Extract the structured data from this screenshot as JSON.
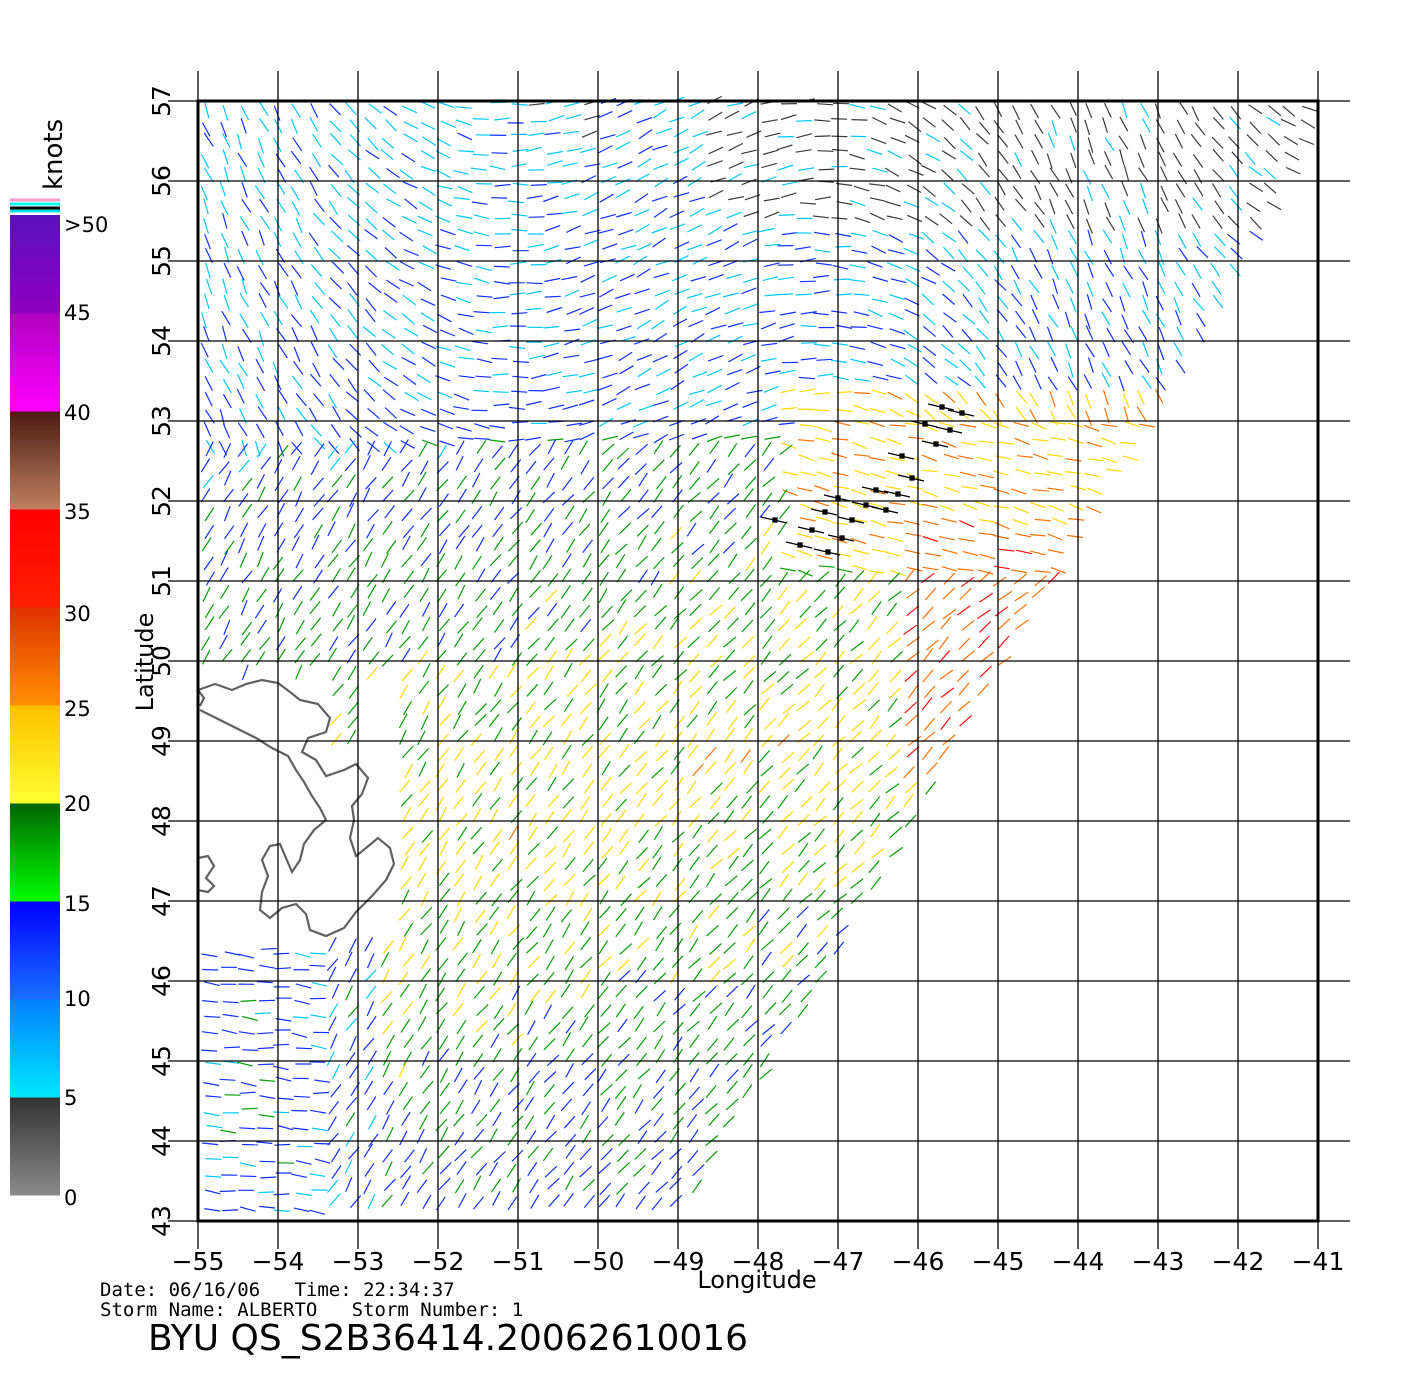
{
  "map": {
    "lon_ticks": [
      "-55",
      "-54",
      "-53",
      "-52",
      "-51",
      "-50",
      "-49",
      "-48",
      "-47",
      "-46",
      "-45",
      "-44",
      "-43",
      "-42",
      "-41"
    ],
    "lat_ticks": [
      "43",
      "44",
      "45",
      "46",
      "47",
      "48",
      "49",
      "50",
      "51",
      "52",
      "53",
      "54",
      "55",
      "56",
      "57"
    ],
    "lon_range": [
      -55,
      -41
    ],
    "lat_range": [
      43,
      57
    ],
    "xlabel": "Longitude",
    "ylabel": "Latitude",
    "land_color": "#606060",
    "storm_track_color": "#000000"
  },
  "legend": {
    "title": "knots",
    "labels": [
      ">50",
      "45",
      "40",
      "35",
      "30",
      "25",
      "20",
      "15",
      "10",
      "5",
      "0"
    ],
    "stops": [
      {
        "from": 0,
        "to": 5,
        "top": "#333333",
        "bottom": "#8a8a8a"
      },
      {
        "from": 5,
        "to": 10,
        "top": "#0080ff",
        "bottom": "#00e8ff"
      },
      {
        "from": 10,
        "to": 15,
        "top": "#0000ff",
        "bottom": "#1a70ff"
      },
      {
        "from": 15,
        "to": 20,
        "top": "#006400",
        "bottom": "#00ff00"
      },
      {
        "from": 20,
        "to": 25,
        "top": "#ffc000",
        "bottom": "#ffff30"
      },
      {
        "from": 25,
        "to": 30,
        "top": "#e03000",
        "bottom": "#ff9000"
      },
      {
        "from": 30,
        "to": 35,
        "top": "#ff0000",
        "bottom": "#ff2000"
      },
      {
        "from": 35,
        "to": 40,
        "top": "#4a1a10",
        "bottom": "#c08060"
      },
      {
        "from": 40,
        "to": 45,
        "top": "#b000c0",
        "bottom": "#ff00ff"
      },
      {
        "from": 45,
        "to": 50,
        "top": "#5a10c0",
        "bottom": "#9000c0"
      }
    ]
  },
  "info": {
    "line1": "Date: 06/16/06   Time: 22:34:37",
    "line2": "Storm Name: ALBERTO   Storm Number: 1",
    "file_id": "BYU QS_S2B36414.20062610016"
  }
}
